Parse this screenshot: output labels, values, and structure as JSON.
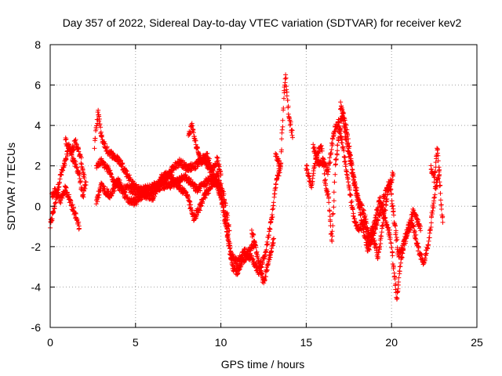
{
  "chart_data": {
    "type": "scatter",
    "title": "Day 357 of 2022, Sidereal Day-to-day VTEC variation (SDTVAR) for receiver kev2",
    "xlabel": "GPS time / hours",
    "ylabel": "SDTVAR / TECUs",
    "xlim": [
      0,
      25
    ],
    "ylim": [
      -6,
      8
    ],
    "xticks": [
      0,
      5,
      10,
      15,
      20,
      25
    ],
    "yticks": [
      -6,
      -4,
      -2,
      0,
      2,
      4,
      6,
      8
    ],
    "grid": true,
    "marker": "+",
    "color": "#ff0000",
    "series": [
      {
        "name": "SDTVAR",
        "segments": [
          [
            [
              0.0,
              -1.0
            ],
            [
              0.3,
              0.2
            ],
            [
              0.6,
              1.5
            ],
            [
              0.9,
              2.2
            ],
            [
              1.1,
              3.0
            ],
            [
              1.4,
              2.2
            ],
            [
              1.7,
              1.6
            ],
            [
              1.9,
              0.4
            ],
            [
              2.1,
              1.2
            ]
          ],
          [
            [
              0.1,
              0.5
            ],
            [
              0.3,
              0.8
            ],
            [
              0.6,
              0.3
            ],
            [
              0.9,
              0.9
            ],
            [
              1.2,
              0.2
            ],
            [
              1.5,
              -0.5
            ],
            [
              1.7,
              -1.1
            ]
          ],
          [
            [
              0.9,
              3.3
            ],
            [
              1.2,
              2.7
            ],
            [
              1.5,
              3.2
            ],
            [
              1.8,
              2.3
            ],
            [
              2.0,
              1.4
            ]
          ],
          [
            [
              2.6,
              3.0
            ],
            [
              2.8,
              4.7
            ],
            [
              3.0,
              3.4
            ],
            [
              3.3,
              2.8
            ],
            [
              3.7,
              2.5
            ],
            [
              4.1,
              2.2
            ],
            [
              4.5,
              1.6
            ],
            [
              4.9,
              1.0
            ],
            [
              5.3,
              0.8
            ],
            [
              5.8,
              0.9
            ],
            [
              6.3,
              1.1
            ],
            [
              6.8,
              1.4
            ],
            [
              7.2,
              1.9
            ],
            [
              7.6,
              2.2
            ],
            [
              8.0,
              1.9
            ],
            [
              8.5,
              2.0
            ],
            [
              9.0,
              2.4
            ],
            [
              9.5,
              1.6
            ],
            [
              10.0,
              0.8
            ],
            [
              10.3,
              -0.8
            ],
            [
              10.6,
              -2.4
            ],
            [
              11.0,
              -2.8
            ],
            [
              11.4,
              -2.2
            ],
            [
              11.8,
              -2.6
            ],
            [
              12.2,
              -3.2
            ],
            [
              12.6,
              -2.4
            ],
            [
              13.0,
              -0.5
            ],
            [
              13.2,
              1.0
            ],
            [
              13.5,
              2.0
            ]
          ],
          [
            [
              2.7,
              2.0
            ],
            [
              3.0,
              2.2
            ],
            [
              3.4,
              1.8
            ],
            [
              3.8,
              1.2
            ],
            [
              4.2,
              0.8
            ],
            [
              4.6,
              0.9
            ],
            [
              5.0,
              0.7
            ],
            [
              5.5,
              0.6
            ],
            [
              6.0,
              0.8
            ],
            [
              6.5,
              1.0
            ],
            [
              7.0,
              1.0
            ],
            [
              7.4,
              1.2
            ],
            [
              7.8,
              1.5
            ],
            [
              8.2,
              1.2
            ],
            [
              8.6,
              0.8
            ],
            [
              9.0,
              1.1
            ],
            [
              9.4,
              1.4
            ],
            [
              9.8,
              1.0
            ],
            [
              10.1,
              0.0
            ],
            [
              10.4,
              -1.6
            ],
            [
              10.7,
              -3.0
            ],
            [
              11.0,
              -3.3
            ],
            [
              11.3,
              -2.7
            ],
            [
              11.7,
              -2.2
            ],
            [
              12.0,
              -1.8
            ]
          ],
          [
            [
              2.7,
              0.2
            ],
            [
              3.0,
              1.0
            ],
            [
              3.5,
              0.5
            ],
            [
              4.0,
              1.3
            ],
            [
              4.5,
              0.3
            ],
            [
              5.0,
              0.2
            ],
            [
              5.5,
              0.6
            ],
            [
              6.0,
              0.4
            ],
            [
              6.5,
              1.4
            ],
            [
              7.0,
              1.6
            ],
            [
              7.5,
              1.0
            ],
            [
              8.0,
              0.6
            ],
            [
              8.4,
              -0.6
            ],
            [
              8.7,
              -0.2
            ],
            [
              9.0,
              0.5
            ],
            [
              9.4,
              0.9
            ],
            [
              9.8,
              1.6
            ],
            [
              10.2,
              0.4
            ],
            [
              10.5,
              -1.2
            ]
          ],
          [
            [
              8.1,
              3.5
            ],
            [
              8.3,
              4.0
            ],
            [
              8.6,
              2.8
            ],
            [
              8.9,
              2.2
            ],
            [
              9.2,
              2.5
            ],
            [
              9.5,
              1.8
            ],
            [
              9.8,
              2.3
            ],
            [
              10.0,
              1.6
            ]
          ],
          [
            [
              11.8,
              -1.2
            ],
            [
              12.1,
              -2.3
            ],
            [
              12.5,
              -3.8
            ],
            [
              12.8,
              -2.7
            ],
            [
              13.1,
              -1.6
            ]
          ],
          [
            [
              13.2,
              2.5
            ],
            [
              13.5,
              2.0
            ],
            [
              13.7,
              5.6
            ],
            [
              13.8,
              6.4
            ],
            [
              13.9,
              5.3
            ],
            [
              14.0,
              4.3
            ],
            [
              14.1,
              4.0
            ],
            [
              14.2,
              3.4
            ]
          ],
          [
            [
              15.0,
              2.0
            ],
            [
              15.3,
              1.0
            ],
            [
              15.6,
              2.5
            ],
            [
              15.9,
              3.0
            ],
            [
              16.1,
              1.2
            ],
            [
              16.3,
              0.5
            ],
            [
              16.5,
              -1.8
            ],
            [
              16.7,
              2.0
            ],
            [
              16.9,
              3.4
            ],
            [
              17.1,
              4.6
            ],
            [
              17.3,
              3.4
            ],
            [
              17.5,
              2.6
            ],
            [
              17.8,
              1.2
            ],
            [
              18.1,
              0.3
            ],
            [
              18.4,
              -0.4
            ],
            [
              18.7,
              -1.6
            ],
            [
              19.0,
              -0.8
            ],
            [
              19.3,
              0.4
            ],
            [
              19.6,
              -0.6
            ],
            [
              19.9,
              -1.4
            ],
            [
              20.1,
              -2.8
            ],
            [
              20.3,
              -4.6
            ],
            [
              20.5,
              -3.0
            ],
            [
              20.8,
              -1.5
            ],
            [
              21.2,
              -0.8
            ],
            [
              21.6,
              -2.2
            ],
            [
              21.9,
              -2.9
            ],
            [
              22.2,
              -1.6
            ],
            [
              22.5,
              0.5
            ],
            [
              22.8,
              1.8
            ]
          ],
          [
            [
              15.4,
              3.0
            ],
            [
              15.7,
              2.1
            ],
            [
              16.0,
              2.2
            ],
            [
              16.3,
              1.7
            ],
            [
              16.6,
              3.6
            ],
            [
              16.9,
              4.2
            ],
            [
              17.2,
              2.6
            ],
            [
              17.5,
              1.0
            ],
            [
              17.8,
              -0.6
            ],
            [
              18.1,
              -1.2
            ],
            [
              18.4,
              -0.8
            ],
            [
              18.7,
              -2.0
            ],
            [
              19.0,
              -1.2
            ],
            [
              19.3,
              -0.4
            ],
            [
              19.6,
              0.6
            ],
            [
              19.9,
              1.2
            ],
            [
              20.2,
              -1.0
            ],
            [
              20.4,
              -2.4
            ],
            [
              20.7,
              -2.0
            ],
            [
              21.0,
              -1.0
            ],
            [
              21.3,
              -0.2
            ],
            [
              21.7,
              -1.2
            ]
          ],
          [
            [
              17.0,
              5.0
            ],
            [
              17.2,
              4.4
            ],
            [
              17.4,
              3.6
            ],
            [
              17.7,
              1.8
            ],
            [
              18.0,
              0.4
            ],
            [
              18.3,
              -0.9
            ],
            [
              18.6,
              -2.2
            ],
            [
              18.9,
              -1.4
            ],
            [
              19.2,
              -2.6
            ],
            [
              19.5,
              -0.8
            ],
            [
              19.8,
              0.8
            ],
            [
              20.1,
              1.6
            ]
          ],
          [
            [
              22.3,
              2.0
            ],
            [
              22.5,
              1.3
            ],
            [
              22.7,
              3.0
            ],
            [
              22.9,
              0.2
            ],
            [
              23.0,
              -0.8
            ]
          ]
        ]
      }
    ]
  }
}
